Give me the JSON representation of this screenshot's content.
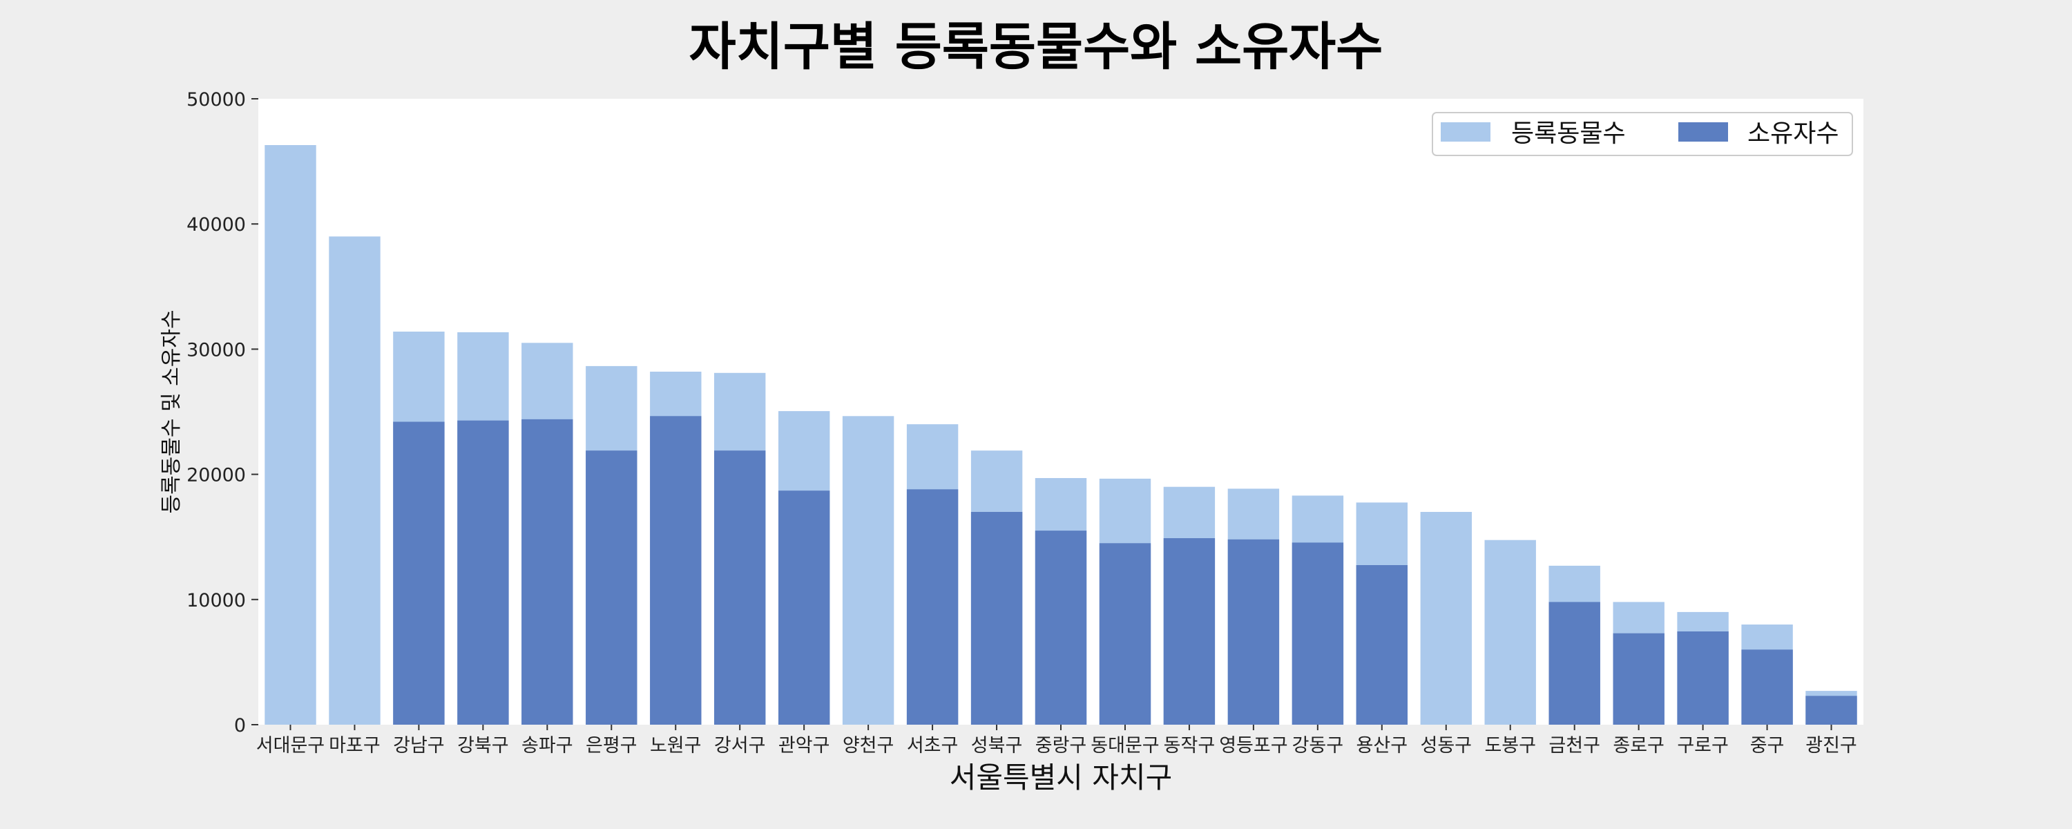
{
  "chart_data": {
    "type": "bar",
    "title": "자치구별 등록동물수와 소유자수",
    "xlabel": "서울특별시 자치구",
    "ylabel": "등록동물수 및 소유자수",
    "ylim": [
      0,
      50000
    ],
    "yticks": [
      0,
      10000,
      20000,
      30000,
      40000,
      50000
    ],
    "grid": false,
    "legend_position": "top-right",
    "categories": [
      "서대문구",
      "마포구",
      "강남구",
      "강북구",
      "송파구",
      "은평구",
      "노원구",
      "강서구",
      "관악구",
      "양천구",
      "서초구",
      "성북구",
      "중랑구",
      "동대문구",
      "동작구",
      "영등포구",
      "강동구",
      "용산구",
      "성동구",
      "도봉구",
      "금천구",
      "종로구",
      "구로구",
      "중구",
      "광진구"
    ],
    "series": [
      {
        "name": "등록동물수",
        "color": "#abc9ec",
        "values": [
          46300,
          39000,
          31400,
          31350,
          30500,
          28650,
          28200,
          28100,
          25050,
          24650,
          24000,
          21900,
          19700,
          19650,
          19000,
          18850,
          18300,
          17750,
          17000,
          14750,
          12700,
          9800,
          9000,
          8000,
          2700
        ]
      },
      {
        "name": "소유자수",
        "color": "#5b7ec1",
        "values": [
          null,
          null,
          24200,
          24300,
          24400,
          21900,
          24650,
          21900,
          18700,
          null,
          18800,
          17000,
          15500,
          14500,
          14900,
          14800,
          14550,
          12750,
          null,
          null,
          9800,
          7300,
          7450,
          6000,
          2300
        ]
      }
    ]
  }
}
